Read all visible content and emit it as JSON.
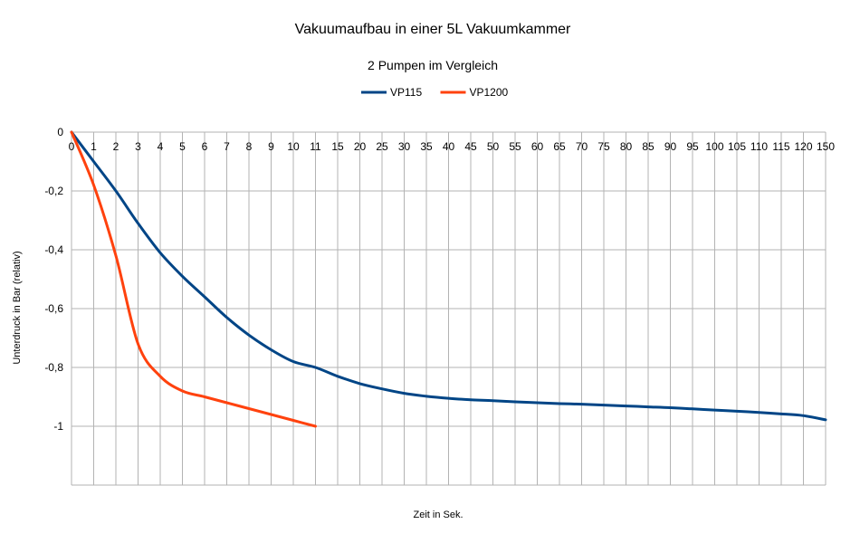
{
  "chart_data": {
    "type": "line",
    "title": "Vakuumaufbau in einer 5L Vakuumkammer",
    "subtitle": "2 Pumpen im Vergleich",
    "xlabel": "Zeit in Sek.",
    "ylabel": "Unterdruck in Bar (relativ)",
    "ylim": [
      -1.2,
      0
    ],
    "yticks": [
      "0",
      "-0,2",
      "-0,4",
      "-0,6",
      "-0,8",
      "-1"
    ],
    "categories": [
      "0",
      "1",
      "2",
      "3",
      "4",
      "5",
      "6",
      "7",
      "8",
      "9",
      "10",
      "11",
      "15",
      "20",
      "25",
      "30",
      "35",
      "40",
      "45",
      "50",
      "55",
      "60",
      "65",
      "70",
      "75",
      "80",
      "85",
      "90",
      "95",
      "100",
      "105",
      "110",
      "115",
      "120",
      "150"
    ],
    "grid": true,
    "legend_position": "top",
    "series": [
      {
        "name": "VP115",
        "color": "#004586",
        "values": [
          0,
          -0.1,
          -0.2,
          -0.31,
          -0.41,
          -0.49,
          -0.56,
          -0.63,
          -0.69,
          -0.74,
          -0.78,
          -0.8,
          -0.83,
          -0.855,
          -0.873,
          -0.888,
          -0.898,
          -0.905,
          -0.91,
          -0.913,
          -0.917,
          -0.92,
          -0.923,
          -0.925,
          -0.928,
          -0.931,
          -0.934,
          -0.937,
          -0.941,
          -0.945,
          -0.949,
          -0.953,
          -0.958,
          -0.964,
          -0.978
        ]
      },
      {
        "name": "VP1200",
        "color": "#ff420e",
        "values": [
          0,
          -0.18,
          -0.42,
          -0.72,
          -0.83,
          -0.88,
          -0.9,
          -0.92,
          -0.94,
          -0.96,
          -0.98,
          -1.0,
          null,
          null,
          null,
          null,
          null,
          null,
          null,
          null,
          null,
          null,
          null,
          null,
          null,
          null,
          null,
          null,
          null,
          null,
          null,
          null,
          null,
          null,
          null
        ]
      }
    ]
  }
}
